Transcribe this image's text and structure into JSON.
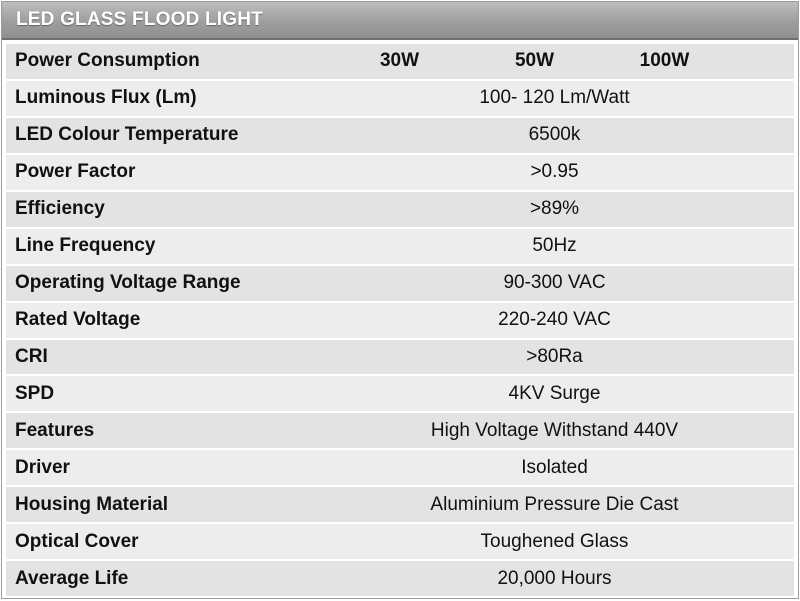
{
  "title": "LED GLASS FLOOD LIGHT",
  "power": {
    "label": "Power Consumption",
    "options": [
      "30W",
      "50W",
      "100W"
    ]
  },
  "specs": [
    {
      "label": "Luminous Flux (Lm)",
      "value": "100- 120 Lm/Watt"
    },
    {
      "label": "LED Colour Temperature",
      "value": "6500k"
    },
    {
      "label": "Power Factor",
      "value": ">0.95"
    },
    {
      "label": "Efficiency",
      "value": ">89%"
    },
    {
      "label": "Line Frequency",
      "value": "50Hz"
    },
    {
      "label": "Operating Voltage Range",
      "value": "90-300 VAC"
    },
    {
      "label": "Rated Voltage",
      "value": "220-240 VAC"
    },
    {
      "label": "CRI",
      "value": ">80Ra"
    },
    {
      "label": "SPD",
      "value": "4KV Surge"
    },
    {
      "label": "Features",
      "value": "High Voltage Withstand 440V"
    },
    {
      "label": "Driver",
      "value": "Isolated"
    },
    {
      "label": "Housing Material",
      "value": "Aluminium Pressure Die Cast"
    },
    {
      "label": "Optical Cover",
      "value": "Toughened Glass"
    },
    {
      "label": "Average Life",
      "value": "20,000 Hours"
    }
  ],
  "colors": {
    "header_bg": "#9e9e9e",
    "row_bg": "#e3e3e3",
    "text": "#111111"
  }
}
